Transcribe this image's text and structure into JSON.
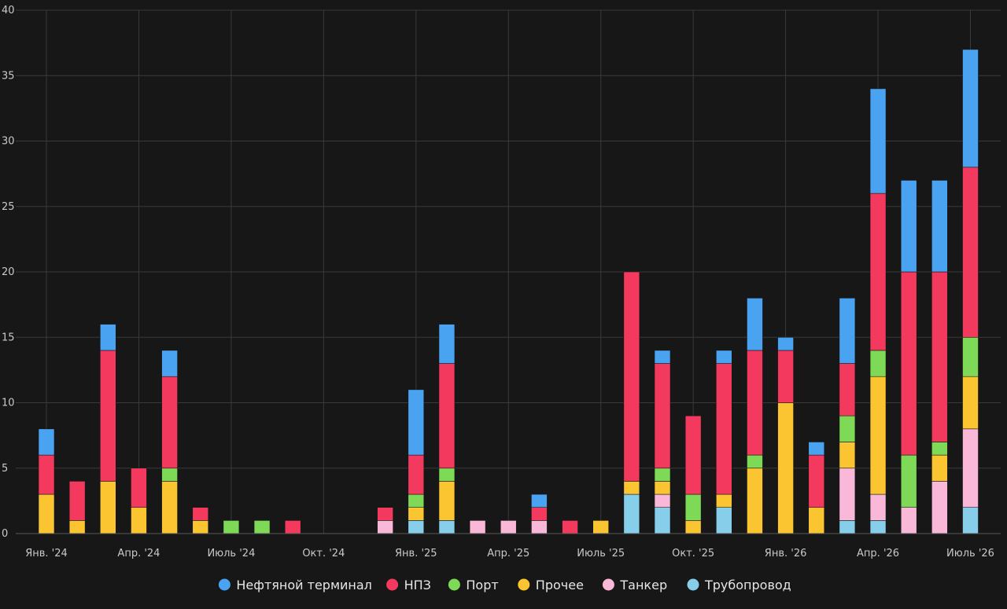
{
  "chart_data": {
    "type": "bar",
    "stacked": true,
    "ylim": [
      0,
      40
    ],
    "yticks": [
      0,
      5,
      10,
      15,
      20,
      25,
      30,
      35,
      40
    ],
    "xtick_labels": [
      "Янв. '24",
      "Апр. '24",
      "Июль '24",
      "Окт. '24",
      "Янв. '25",
      "Апр. '25",
      "Июль '25",
      "Окт. '25",
      "Янв. '26",
      "Апр. '26",
      "Июль '26"
    ],
    "grid": true,
    "legend_position": "bottom",
    "categories": [
      "2024-01",
      "2024-02",
      "2024-03",
      "2024-04",
      "2024-05",
      "2024-06",
      "2024-07",
      "2024-08",
      "2024-09",
      "2024-10",
      "2024-11",
      "2024-12",
      "2025-01",
      "2025-02",
      "2025-03",
      "2025-04",
      "2025-05",
      "2025-06",
      "2025-07",
      "2025-08",
      "2025-09",
      "2025-10",
      "2025-11",
      "2025-12",
      "2026-01",
      "2026-02",
      "2026-03",
      "2026-04",
      "2026-05",
      "2026-06",
      "2026-07"
    ],
    "series": [
      {
        "name": "Трубопровод",
        "color": "#87ceeb",
        "values": [
          0,
          0,
          0,
          0,
          0,
          0,
          0,
          0,
          0,
          0,
          0,
          0,
          1,
          1,
          0,
          0,
          0,
          0,
          0,
          3,
          2,
          0,
          2,
          0,
          0,
          0,
          1,
          1,
          0,
          0,
          2
        ]
      },
      {
        "name": "Танкер",
        "color": "#f9b8d8",
        "values": [
          0,
          0,
          0,
          0,
          0,
          0,
          0,
          0,
          0,
          0,
          0,
          1,
          0,
          0,
          1,
          1,
          1,
          0,
          0,
          0,
          1,
          0,
          0,
          0,
          0,
          0,
          4,
          2,
          2,
          4,
          6
        ]
      },
      {
        "name": "Прочее",
        "color": "#fbc531",
        "values": [
          3,
          1,
          4,
          2,
          4,
          1,
          0,
          0,
          0,
          0,
          0,
          0,
          1,
          3,
          0,
          0,
          0,
          0,
          1,
          1,
          1,
          1,
          1,
          5,
          10,
          2,
          2,
          9,
          0,
          2,
          4
        ]
      },
      {
        "name": "Порт",
        "color": "#7ed957",
        "values": [
          0,
          0,
          0,
          0,
          1,
          0,
          1,
          1,
          0,
          0,
          0,
          0,
          1,
          1,
          0,
          0,
          0,
          0,
          0,
          0,
          1,
          2,
          0,
          1,
          0,
          0,
          2,
          2,
          4,
          1,
          3
        ]
      },
      {
        "name": "НПЗ",
        "color": "#f4395f",
        "values": [
          3,
          3,
          10,
          3,
          7,
          1,
          0,
          0,
          1,
          0,
          0,
          1,
          3,
          8,
          0,
          0,
          1,
          1,
          0,
          16,
          8,
          6,
          10,
          8,
          4,
          4,
          4,
          12,
          14,
          13,
          13
        ]
      },
      {
        "name": "Нефтяной терминал",
        "color": "#4aa3f0",
        "values": [
          2,
          0,
          2,
          0,
          2,
          0,
          0,
          0,
          0,
          0,
          0,
          0,
          5,
          3,
          0,
          0,
          1,
          0,
          0,
          0,
          1,
          0,
          1,
          4,
          1,
          1,
          5,
          8,
          7,
          7,
          9
        ]
      }
    ],
    "legend_order": [
      "Нефтяной терминал",
      "НПЗ",
      "Порт",
      "Прочее",
      "Танкер",
      "Трубопровод"
    ]
  },
  "style": {
    "background": "#171717",
    "grid_color": "#3a3a3a",
    "text_color": "#c9c9c9"
  }
}
